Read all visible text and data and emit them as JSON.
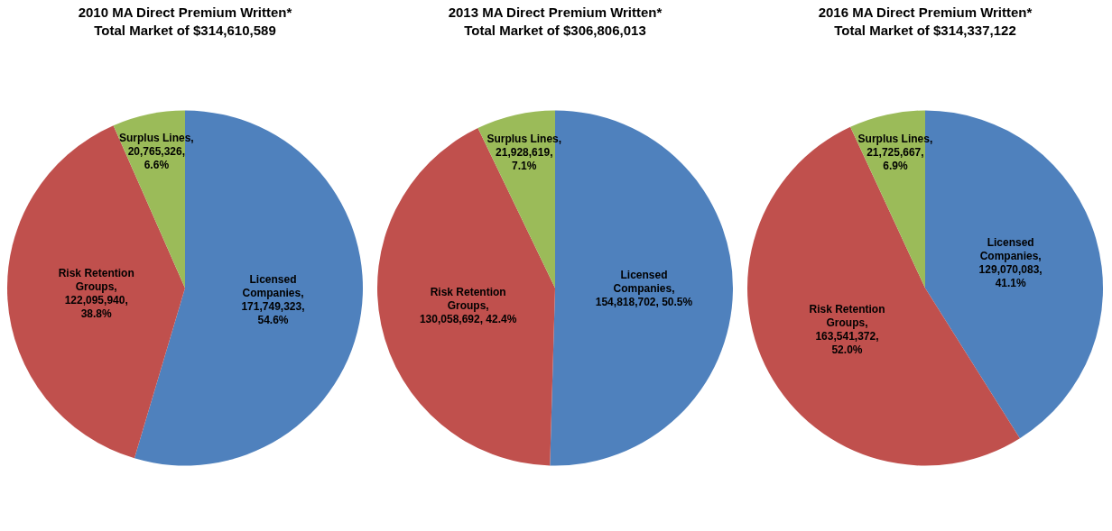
{
  "chart_data": [
    {
      "type": "pie",
      "title": "2010 MA Direct Premium Written*",
      "subtitle": "Total Market of $314,610,589",
      "categories": [
        "Licensed Companies",
        "Risk Retention Groups",
        "Surplus Lines"
      ],
      "values": [
        171749323,
        122095940,
        20765326
      ],
      "colors": [
        "#4f81bd",
        "#c0504d",
        "#9bbb59"
      ],
      "value_labels": [
        ",\n171,749,323,\n54.6%",
        ",\n122,095,940,\n38.8%",
        ",\n20,765,326,\n6.6%"
      ]
    },
    {
      "type": "pie",
      "title": "2013 MA Direct Premium Written*",
      "subtitle": "Total Market of $306,806,013",
      "categories": [
        "Licensed Companies",
        "Risk Retention Groups",
        "Surplus Lines"
      ],
      "values": [
        154818702,
        130058692,
        21928619
      ],
      "colors": [
        "#4f81bd",
        "#c0504d",
        "#9bbb59"
      ],
      "value_labels": [
        ",\n154,818,702, 50.5%",
        ",\n130,058,692, 42.4%",
        ",\n21,928,619,\n7.1%"
      ]
    },
    {
      "type": "pie",
      "title": "2016 MA Direct Premium Written*",
      "subtitle": "Total Market of $314,337,122",
      "categories": [
        "Licensed Companies",
        "Risk Retention Groups",
        "Surplus Lines"
      ],
      "values": [
        129070083,
        163541372,
        21725667
      ],
      "colors": [
        "#4f81bd",
        "#c0504d",
        "#9bbb59"
      ],
      "value_labels": [
        ",\n129,070,083,\n41.1%",
        ",\n163,541,372,\n52.0%",
        ",\n21,725,667,\n6.9%"
      ]
    }
  ]
}
